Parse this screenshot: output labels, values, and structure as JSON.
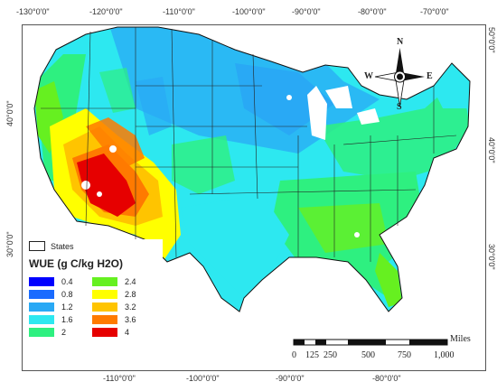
{
  "map": {
    "lon_top": [
      "-130°0'0\"",
      "-120°0'0\"",
      "-110°0'0\"",
      "-100°0'0\"",
      "-90°0'0\"",
      "-80°0'0\"",
      "-70°0'0\""
    ],
    "lon_bottom": [
      "-110°0'0\"",
      "-100°0'0\"",
      "-90°0'0\"",
      "-80°0'0\""
    ],
    "lat_left": [
      "40°0'0\"",
      "30°0'0\""
    ],
    "lat_right": [
      "50°0'0\"",
      "40°0'0\"",
      "30°0'0\""
    ]
  },
  "legend": {
    "states_label": "States",
    "title": "WUE (g C/kg H2O)",
    "classes": [
      {
        "value": "0.4",
        "color": "#0000ff"
      },
      {
        "value": "0.8",
        "color": "#1a6bff"
      },
      {
        "value": "1.2",
        "color": "#29a9f5"
      },
      {
        "value": "1.6",
        "color": "#2de8f0"
      },
      {
        "value": "2",
        "color": "#2ef080"
      },
      {
        "value": "2.4",
        "color": "#66f020"
      },
      {
        "value": "2.8",
        "color": "#ffff00"
      },
      {
        "value": "3.2",
        "color": "#ffc400"
      },
      {
        "value": "3.6",
        "color": "#ff7a00"
      },
      {
        "value": "4",
        "color": "#e60000"
      }
    ]
  },
  "north_arrow": {
    "n": "N",
    "s": "S",
    "e": "E",
    "w": "W"
  },
  "scale_bar": {
    "unit": "Miles",
    "labels": [
      "0",
      "125",
      "250",
      "500",
      "750",
      "1,000"
    ]
  }
}
